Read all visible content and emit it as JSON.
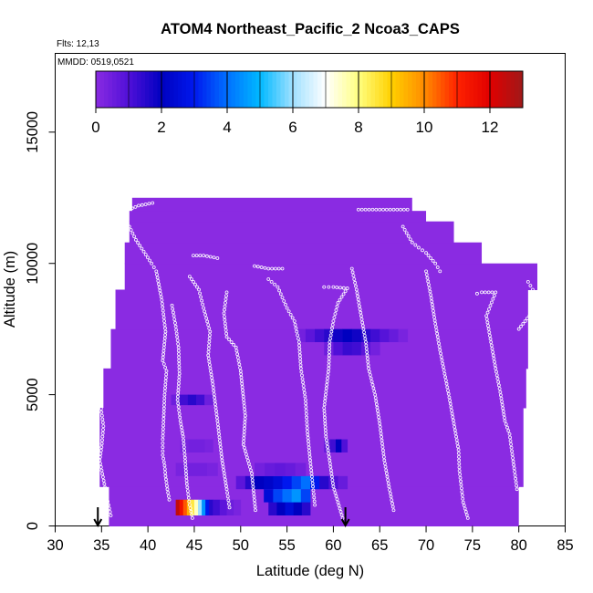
{
  "chart_data": {
    "type": "heatmap",
    "title": "ATOM4 Northeast_Pacific_2 Ncoa3_CAPS",
    "annotations": {
      "flights": "Flts: 12,13",
      "dates": "MMDD: 0519,0521"
    },
    "xlabel": "Latitude (deg N)",
    "ylabel": "Altitude (m)",
    "xlim": [
      30,
      85
    ],
    "ylim": [
      0,
      18000
    ],
    "x_ticks": [
      30,
      35,
      40,
      45,
      50,
      55,
      60,
      65,
      70,
      75,
      80,
      85
    ],
    "y_ticks": [
      0,
      5000,
      10000,
      15000
    ],
    "colorbar": {
      "range": [
        0,
        13
      ],
      "ticks": [
        0,
        2,
        4,
        6,
        8,
        10,
        12
      ],
      "colors": [
        "#8a2be2",
        "#5010d8",
        "#0000c0",
        "#0018ee",
        "#0070ff",
        "#00b8ff",
        "#a0e0ff",
        "#ffffff",
        "#ffff80",
        "#ffd000",
        "#ff8c00",
        "#ff2200",
        "#e00000",
        "#a01818"
      ]
    },
    "background_value": 0,
    "coverage_envelope": {
      "description": "Region with data (value ~0) by altitude, latitude extent",
      "rows": [
        {
          "alt": [
            0,
            1500
          ],
          "lat": [
            35.8,
            80.0
          ]
        },
        {
          "alt": [
            1500,
            4500
          ],
          "lat": [
            34.8,
            80.5
          ]
        },
        {
          "alt": [
            4500,
            6000
          ],
          "lat": [
            35.2,
            80.8
          ]
        },
        {
          "alt": [
            6000,
            7500
          ],
          "lat": [
            36.0,
            81.0
          ]
        },
        {
          "alt": [
            7500,
            9000
          ],
          "lat": [
            36.5,
            81.0
          ]
        },
        {
          "alt": [
            9000,
            10000
          ],
          "lat": [
            37.5,
            82.0
          ]
        },
        {
          "alt": [
            10000,
            10800
          ],
          "lat": [
            37.5,
            76.0
          ]
        },
        {
          "alt": [
            10800,
            11600
          ],
          "lat": [
            38.0,
            73.0
          ]
        },
        {
          "alt": [
            11600,
            12000
          ],
          "lat": [
            38.0,
            70.0
          ]
        },
        {
          "alt": [
            12000,
            12500
          ],
          "lat": [
            38.3,
            68.5
          ]
        }
      ]
    },
    "hotspots": [
      {
        "lat": [
          43.0,
          47.0
        ],
        "alt": [
          400,
          1000
        ],
        "values": [
          12.5,
          11.5,
          10.5,
          9.5,
          8.5,
          7.5,
          6.0,
          4.5,
          3.0,
          1.5
        ]
      },
      {
        "lat": [
          47.0,
          50.0
        ],
        "alt": [
          400,
          1000
        ],
        "values": [
          1.2,
          0.8,
          0.5,
          0.3
        ]
      },
      {
        "lat": [
          53.0,
          57.5
        ],
        "alt": [
          400,
          1000
        ],
        "values": [
          1.5,
          2.0,
          2.5,
          2.0,
          1.5
        ]
      },
      {
        "lat": [
          49.5,
          61.5
        ],
        "alt": [
          1400,
          1900
        ],
        "values": [
          0.8,
          1.5,
          2.0,
          2.2,
          2.5,
          3.0,
          3.5,
          4.0,
          3.0,
          1.5,
          1.0,
          0.6
        ]
      },
      {
        "lat": [
          52.5,
          57.5
        ],
        "alt": [
          900,
          1400
        ],
        "values": [
          2.5,
          3.5,
          4.0,
          4.5,
          3.5
        ]
      },
      {
        "lat": [
          51.5,
          57.0
        ],
        "alt": [
          1900,
          2400
        ],
        "values": [
          0.4,
          0.6,
          0.7,
          0.6,
          0.4
        ]
      },
      {
        "lat": [
          43.0,
          47.5
        ],
        "alt": [
          1900,
          2400
        ],
        "values": [
          0.3,
          0.4,
          0.4,
          0.3
        ]
      },
      {
        "lat": [
          43.5,
          47.0
        ],
        "alt": [
          2800,
          3300
        ],
        "values": [
          0.3,
          0.4,
          0.4,
          0.3
        ]
      },
      {
        "lat": [
          59.0,
          61.5
        ],
        "alt": [
          2800,
          3300
        ],
        "values": [
          0.6,
          1.2,
          2.0,
          1.0
        ]
      },
      {
        "lat": [
          42.5,
          47.0
        ],
        "alt": [
          4600,
          5000
        ],
        "values": [
          0.5,
          1.2,
          1.5,
          1.2,
          0.5
        ]
      },
      {
        "lat": [
          56.0,
          68.0
        ],
        "alt": [
          7000,
          7500
        ],
        "values": [
          0.4,
          0.8,
          1.2,
          1.5,
          1.8,
          2.0,
          1.8,
          1.5,
          1.2,
          0.9,
          0.6,
          0.3
        ]
      },
      {
        "lat": [
          59.0,
          65.0
        ],
        "alt": [
          6500,
          7000
        ],
        "values": [
          0.5,
          1.0,
          1.3,
          1.2,
          0.8,
          0.4
        ]
      }
    ],
    "flight_tracks": [
      [
        [
          34.6,
          5000
        ],
        [
          34.9,
          4600
        ],
        [
          35.2,
          3800
        ],
        [
          35.0,
          3000
        ],
        [
          34.8,
          2500
        ],
        [
          35.3,
          1600
        ],
        [
          35.5,
          1200
        ],
        [
          36.0,
          400
        ]
      ],
      [
        [
          38.3,
          12100
        ],
        [
          39.0,
          12200
        ],
        [
          40.5,
          12300
        ]
      ],
      [
        [
          38.0,
          11400
        ],
        [
          38.7,
          10900
        ],
        [
          40.4,
          10000
        ],
        [
          40.9,
          9700
        ],
        [
          41.5,
          8600
        ],
        [
          41.9,
          7400
        ],
        [
          41.6,
          6300
        ],
        [
          42.0,
          5900
        ],
        [
          41.8,
          5000
        ],
        [
          41.6,
          3300
        ],
        [
          41.6,
          2700
        ],
        [
          41.8,
          2300
        ],
        [
          41.9,
          1900
        ],
        [
          42.1,
          1400
        ],
        [
          42.3,
          1000
        ]
      ],
      [
        [
          42.6,
          8400
        ],
        [
          43.0,
          7600
        ],
        [
          43.3,
          6800
        ],
        [
          43.4,
          5800
        ],
        [
          43.2,
          4800
        ],
        [
          43.5,
          4000
        ],
        [
          43.8,
          3400
        ],
        [
          44.0,
          2600
        ],
        [
          44.2,
          1600
        ],
        [
          44.5,
          800
        ],
        [
          44.8,
          300
        ]
      ],
      [
        [
          44.9,
          10300
        ],
        [
          46.0,
          10300
        ],
        [
          47.5,
          10200
        ]
      ],
      [
        [
          44.5,
          9500
        ],
        [
          45.5,
          9000
        ],
        [
          46.0,
          8300
        ],
        [
          46.7,
          7400
        ],
        [
          46.5,
          6500
        ],
        [
          47.0,
          5400
        ],
        [
          47.5,
          4000
        ],
        [
          48.0,
          2500
        ],
        [
          48.5,
          1400
        ],
        [
          48.8,
          700
        ]
      ],
      [
        [
          48.5,
          8900
        ],
        [
          48.2,
          8100
        ],
        [
          48.5,
          7200
        ],
        [
          49.5,
          6800
        ],
        [
          50.0,
          5900
        ],
        [
          50.5,
          4200
        ],
        [
          50.3,
          3100
        ],
        [
          51.2,
          2000
        ],
        [
          51.6,
          600
        ]
      ],
      [
        [
          51.5,
          9900
        ],
        [
          53.0,
          9800
        ],
        [
          54.5,
          9800
        ]
      ],
      [
        [
          53.0,
          9400
        ],
        [
          54.0,
          9100
        ],
        [
          54.5,
          8700
        ],
        [
          55.0,
          8300
        ],
        [
          55.8,
          7800
        ],
        [
          56.3,
          7000
        ],
        [
          56.5,
          6000
        ],
        [
          57.0,
          4800
        ],
        [
          57.2,
          3600
        ],
        [
          57.5,
          2500
        ],
        [
          57.8,
          1500
        ],
        [
          58.0,
          800
        ]
      ],
      [
        [
          59.0,
          9100
        ],
        [
          60.0,
          9100
        ],
        [
          61.5,
          9050
        ],
        [
          60.5,
          8500
        ],
        [
          60.0,
          7800
        ],
        [
          59.6,
          7000
        ],
        [
          59.5,
          6000
        ],
        [
          59.0,
          4500
        ],
        [
          59.2,
          3400
        ],
        [
          59.6,
          2500
        ],
        [
          60.0,
          1500
        ],
        [
          60.5,
          900
        ],
        [
          61.0,
          300
        ]
      ],
      [
        [
          62.0,
          9800
        ],
        [
          62.5,
          9000
        ],
        [
          63.0,
          8000
        ],
        [
          63.5,
          7000
        ],
        [
          63.8,
          6000
        ],
        [
          64.5,
          5000
        ],
        [
          65.0,
          3900
        ],
        [
          65.5,
          2500
        ],
        [
          66.0,
          1500
        ],
        [
          66.5,
          600
        ]
      ],
      [
        [
          62.7,
          12050
        ],
        [
          65.0,
          12050
        ],
        [
          68.0,
          12050
        ]
      ],
      [
        [
          67.5,
          11400
        ],
        [
          68.5,
          10800
        ],
        [
          69.2,
          10600
        ],
        [
          70.0,
          10400
        ],
        [
          71.0,
          10000
        ],
        [
          71.5,
          9700
        ]
      ],
      [
        [
          70.0,
          9700
        ],
        [
          70.5,
          8800
        ],
        [
          71.0,
          7700
        ],
        [
          71.5,
          6700
        ],
        [
          72.0,
          5800
        ],
        [
          72.5,
          4900
        ],
        [
          73.0,
          3900
        ],
        [
          73.5,
          2900
        ],
        [
          73.6,
          2100
        ],
        [
          74.0,
          900
        ],
        [
          74.5,
          300
        ]
      ],
      [
        [
          75.5,
          8850
        ],
        [
          76.0,
          8900
        ],
        [
          77.5,
          8900
        ],
        [
          76.5,
          8000
        ],
        [
          77.0,
          7000
        ],
        [
          77.5,
          6000
        ],
        [
          78.0,
          5100
        ],
        [
          78.5,
          4000
        ],
        [
          79.0,
          3500
        ],
        [
          79.5,
          2200
        ],
        [
          79.8,
          1400
        ]
      ],
      [
        [
          81.0,
          9300
        ],
        [
          81.5,
          9000
        ],
        [
          81.6,
          8200
        ],
        [
          80.0,
          7500
        ]
      ]
    ],
    "arrow_markers": [
      34.6,
      61.3
    ]
  }
}
